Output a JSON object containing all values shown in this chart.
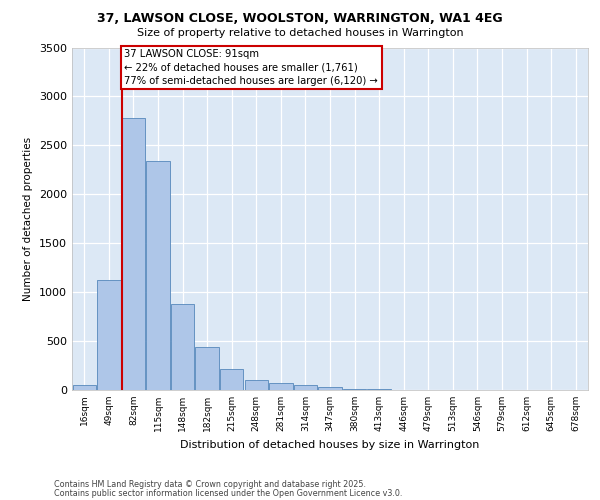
{
  "title1": "37, LAWSON CLOSE, WOOLSTON, WARRINGTON, WA1 4EG",
  "title2": "Size of property relative to detached houses in Warrington",
  "xlabel": "Distribution of detached houses by size in Warrington",
  "ylabel": "Number of detached properties",
  "categories": [
    "16sqm",
    "49sqm",
    "82sqm",
    "115sqm",
    "148sqm",
    "182sqm",
    "215sqm",
    "248sqm",
    "281sqm",
    "314sqm",
    "347sqm",
    "380sqm",
    "413sqm",
    "446sqm",
    "479sqm",
    "513sqm",
    "546sqm",
    "579sqm",
    "612sqm",
    "645sqm",
    "678sqm"
  ],
  "values": [
    50,
    1120,
    2780,
    2340,
    880,
    440,
    210,
    100,
    70,
    55,
    30,
    15,
    10,
    5,
    3,
    2,
    1,
    1,
    0,
    0,
    0
  ],
  "bar_color": "#aec6e8",
  "bar_edge_color": "#5588bb",
  "background_color": "#dce8f5",
  "grid_color": "#ffffff",
  "property_line_x": 1.55,
  "annotation_title": "37 LAWSON CLOSE: 91sqm",
  "annotation_line1": "← 22% of detached houses are smaller (1,761)",
  "annotation_line2": "77% of semi-detached houses are larger (6,120) →",
  "annotation_box_color": "#ffffff",
  "annotation_border_color": "#cc0000",
  "property_line_color": "#cc0000",
  "footer1": "Contains HM Land Registry data © Crown copyright and database right 2025.",
  "footer2": "Contains public sector information licensed under the Open Government Licence v3.0.",
  "ylim": [
    0,
    3500
  ],
  "yticks": [
    0,
    500,
    1000,
    1500,
    2000,
    2500,
    3000,
    3500
  ]
}
